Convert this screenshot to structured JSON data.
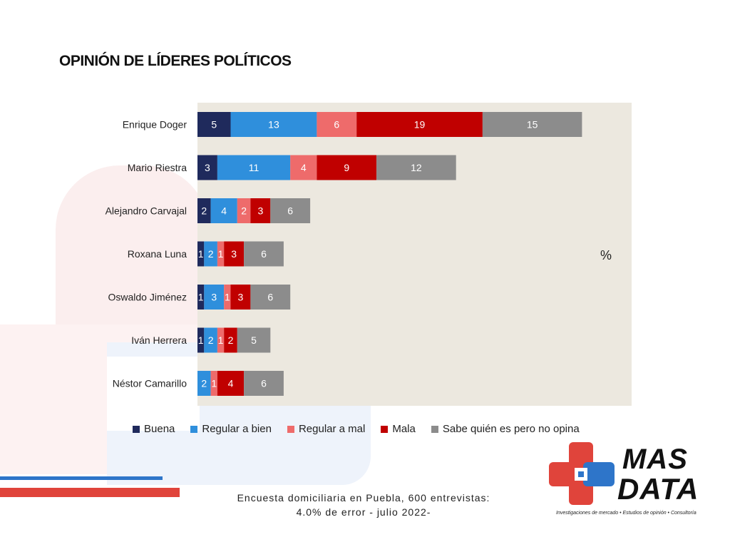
{
  "title": "OPINIÓN DE LÍDERES POLÍTICOS",
  "unit_label": "%",
  "footnote_line1": "Encuesta domiciliaria en Puebla, 600 entrevistas:",
  "footnote_line2": "4.0% de error - julio 2022-",
  "logo": {
    "line1": "MAS",
    "line2": "DATA",
    "tagline": "Investigaciones de mercado • Estudios de opinión • Consultoría"
  },
  "colors": {
    "plot_bg": "#ece8df",
    "Buena": "#1f2a5c",
    "Regular a bien": "#2f8fdc",
    "Regular a mal": "#ee6b6b",
    "Mala": "#c00000",
    "Sabe quién es pero no opina": "#8c8c8c"
  },
  "chart_data": {
    "type": "bar",
    "orientation": "horizontal",
    "stacked": true,
    "categories": [
      "Enrique Doger",
      "Mario Riestra",
      "Alejandro Carvajal",
      "Roxana Luna",
      "Oswaldo Jiménez",
      "Iván Herrera",
      "Néstor Camarillo"
    ],
    "series": [
      {
        "name": "Buena",
        "values": [
          5,
          3,
          2,
          1,
          1,
          1,
          0
        ]
      },
      {
        "name": "Regular a bien",
        "values": [
          13,
          11,
          4,
          2,
          3,
          2,
          2
        ]
      },
      {
        "name": "Regular a mal",
        "values": [
          6,
          4,
          2,
          1,
          1,
          1,
          1
        ]
      },
      {
        "name": "Mala",
        "values": [
          19,
          9,
          3,
          3,
          3,
          2,
          4
        ]
      },
      {
        "name": "Sabe quién es pero no opina",
        "values": [
          15,
          12,
          6,
          6,
          6,
          5,
          6
        ]
      }
    ],
    "xlim": [
      0,
      70
    ],
    "legend_position": "bottom",
    "grid": false
  }
}
